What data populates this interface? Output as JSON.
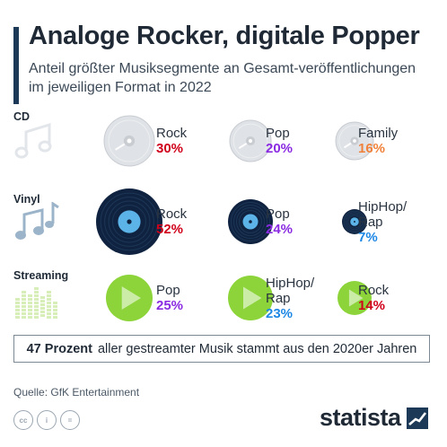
{
  "chart_data": {
    "type": "other",
    "title": "Analoge Rocker, digitale Popper",
    "subtitle": "Anteil größter Musiksegmente an Gesamt-veröffentlichungen im jeweiligen Format in 2022",
    "formats": [
      {
        "label": "CD",
        "kind": "cd",
        "segments": [
          {
            "name": "Rock",
            "value": 30,
            "label": "30%",
            "color": "#d0021b"
          },
          {
            "name": "Pop",
            "value": 20,
            "label": "20%",
            "color": "#8a2be2"
          },
          {
            "name": "Family",
            "value": 16,
            "label": "16%",
            "color": "#f0813a"
          }
        ]
      },
      {
        "label": "Vinyl",
        "kind": "vinyl",
        "segments": [
          {
            "name": "Rock",
            "value": 52,
            "label": "52%",
            "color": "#d0021b"
          },
          {
            "name": "Pop",
            "value": 24,
            "label": "24%",
            "color": "#8a2be2"
          },
          {
            "name": "HipHop/ Rap",
            "value": 7,
            "label": "7%",
            "color": "#1e88e5"
          }
        ]
      },
      {
        "label": "Streaming",
        "kind": "stream",
        "segments": [
          {
            "name": "Pop",
            "value": 25,
            "label": "25%",
            "color": "#8a2be2"
          },
          {
            "name": "HipHop/ Rap",
            "value": 23,
            "label": "23%",
            "color": "#1e88e5"
          },
          {
            "name": "Rock",
            "value": 14,
            "label": "14%",
            "color": "#d0021b"
          }
        ]
      }
    ]
  },
  "note": {
    "bold": "47 Prozent",
    "text": "aller gestreamter Musik stammt aus den 2020er Jahren"
  },
  "source": "Quelle: GfK Entertainment",
  "licenses": [
    "cc",
    "i",
    "="
  ],
  "brand": "statista",
  "colors": {
    "accent": "#1c3a57",
    "cd": "#d5d8dc",
    "vinyl": "#0f2340",
    "vinyl_label": "#5bb3e8",
    "stream": "#8cd43a",
    "icon_light": "#c9dbe9"
  }
}
